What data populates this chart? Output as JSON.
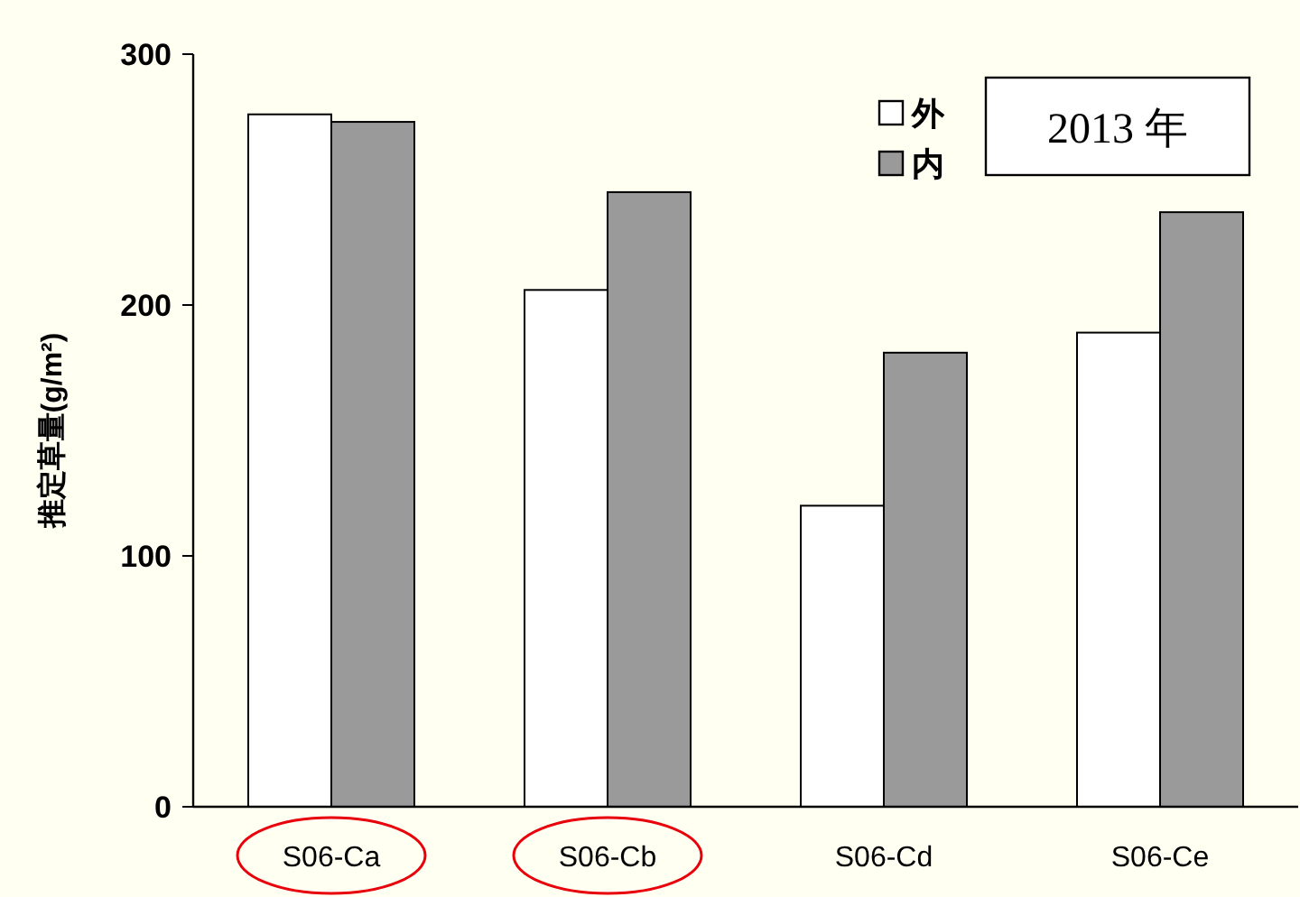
{
  "chart_data": {
    "type": "bar",
    "ylabel": "推定草量(g/m²)",
    "categories": [
      "S06-Ca",
      "S06-Cb",
      "S06-Cd",
      "S06-Ce"
    ],
    "series": [
      {
        "name": "外",
        "color": "#ffffff",
        "values": [
          276,
          206,
          120,
          189
        ]
      },
      {
        "name": "内",
        "color": "#9a9a9a",
        "values": [
          273,
          245,
          181,
          237
        ]
      }
    ],
    "ylim": [
      0,
      300
    ],
    "yticks": [
      0,
      100,
      200,
      300
    ],
    "grid": false,
    "legend": "top right",
    "annotations": [
      "2013 年"
    ]
  }
}
